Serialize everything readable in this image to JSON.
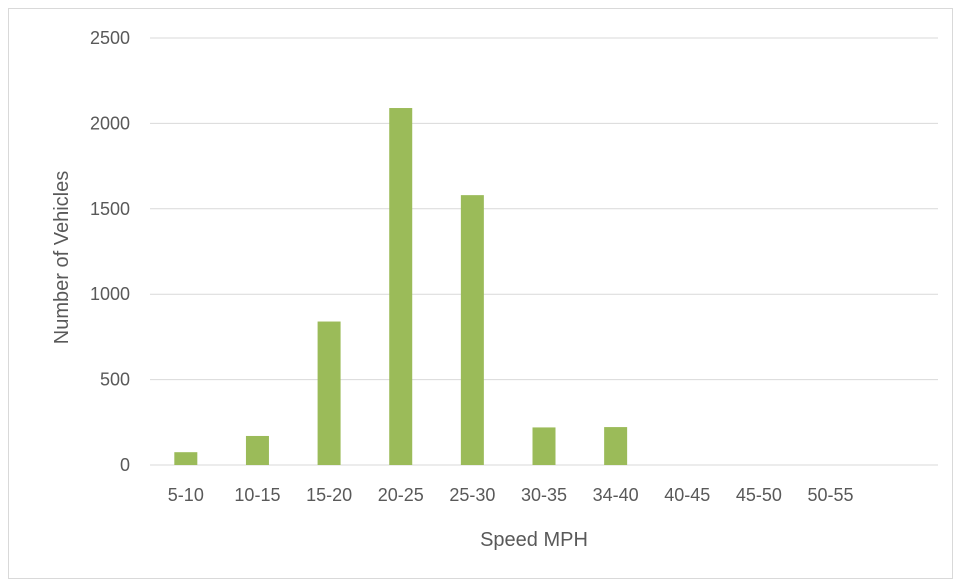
{
  "chart_data": {
    "type": "bar",
    "title": "",
    "xlabel": "Speed MPH",
    "ylabel": "Number of Vehicles",
    "categories": [
      "5-10",
      "10-15",
      "15-20",
      "20-25",
      "25-30",
      "30-35",
      "34-40",
      "40-45",
      "45-50",
      "50-55"
    ],
    "values": [
      75,
      170,
      840,
      2090,
      1580,
      220,
      222,
      0,
      0,
      0
    ],
    "ylim": [
      0,
      2500
    ],
    "yticks": [
      0,
      500,
      1000,
      1500,
      2000,
      2500
    ],
    "grid": true,
    "legend": "none",
    "bar_color": "#9bbb59"
  }
}
